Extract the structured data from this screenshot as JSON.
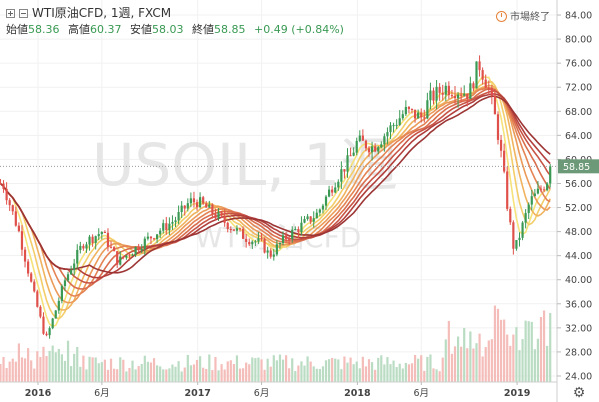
{
  "header": {
    "symbol": "WTI原油CFD, 1週, FXCM",
    "ohlc": [
      {
        "label": "始値",
        "value": "58.36"
      },
      {
        "label": "高値",
        "value": "60.37"
      },
      {
        "label": "安値",
        "value": "58.03"
      },
      {
        "label": "終値",
        "value": "58.85"
      }
    ],
    "change": "+0.49 (+0.84%)",
    "market_status": "市場終了"
  },
  "watermark": {
    "line1": "USOIL, 1週",
    "line2": "WTI原油CFD"
  },
  "colors": {
    "up": "#3a9a54",
    "down": "#e0504a",
    "vol_up": "#b9dcc3",
    "vol_down": "#f4bdb9",
    "ribbon": [
      "#f6e27a",
      "#f3cd69",
      "#f0b35e",
      "#eb9a58",
      "#e48353",
      "#d96d4c",
      "#c85445",
      "#b23f3c",
      "#9c3534"
    ]
  },
  "chart_data": {
    "type": "candlestick",
    "timeframe": "1週",
    "y_axis": {
      "position": "right",
      "min": 23,
      "max": 86,
      "ticks": [
        24,
        28,
        32,
        36,
        40,
        44,
        48,
        52,
        56,
        60,
        64,
        68,
        72,
        76,
        80,
        84
      ]
    },
    "x_axis": {
      "labels": [
        {
          "text": "2016",
          "t": 0.0
        },
        {
          "text": "6月",
          "t": 0.4
        },
        {
          "text": "2017",
          "t": 1.0
        },
        {
          "text": "6月",
          "t": 1.4
        },
        {
          "text": "2018",
          "t": 2.0
        },
        {
          "text": "6月",
          "t": 2.4
        },
        {
          "text": "2019",
          "t": 3.0
        }
      ]
    },
    "last_price": 58.85,
    "price_anchors": [
      [
        -0.22,
        56
      ],
      [
        -0.12,
        48
      ],
      [
        -0.03,
        38
      ],
      [
        0.05,
        30
      ],
      [
        0.1,
        34
      ],
      [
        0.17,
        40
      ],
      [
        0.28,
        46
      ],
      [
        0.4,
        48
      ],
      [
        0.5,
        43
      ],
      [
        0.6,
        45
      ],
      [
        0.75,
        48
      ],
      [
        0.86,
        50
      ],
      [
        0.95,
        53
      ],
      [
        1.0,
        53
      ],
      [
        1.1,
        51
      ],
      [
        1.2,
        49
      ],
      [
        1.3,
        47
      ],
      [
        1.4,
        46
      ],
      [
        1.45,
        44
      ],
      [
        1.55,
        47
      ],
      [
        1.65,
        49
      ],
      [
        1.75,
        51
      ],
      [
        1.85,
        56
      ],
      [
        1.95,
        60
      ],
      [
        2.0,
        63
      ],
      [
        2.1,
        62
      ],
      [
        2.2,
        65
      ],
      [
        2.3,
        68
      ],
      [
        2.4,
        67
      ],
      [
        2.45,
        70
      ],
      [
        2.55,
        72
      ],
      [
        2.7,
        71
      ],
      [
        2.76,
        76
      ],
      [
        2.82,
        72
      ],
      [
        2.87,
        66
      ],
      [
        2.91,
        59
      ],
      [
        2.94,
        52
      ],
      [
        2.98,
        45
      ],
      [
        3.0,
        46
      ],
      [
        3.08,
        53
      ],
      [
        3.18,
        56
      ],
      [
        3.22,
        58.85
      ]
    ],
    "volume_hint": "low before mid-2018, rising strongly into late 2018 and early 2019",
    "moving_average_ribbon": {
      "count": 9,
      "periods": [
        5,
        8,
        11,
        14,
        17,
        20,
        23,
        26,
        30
      ]
    }
  }
}
